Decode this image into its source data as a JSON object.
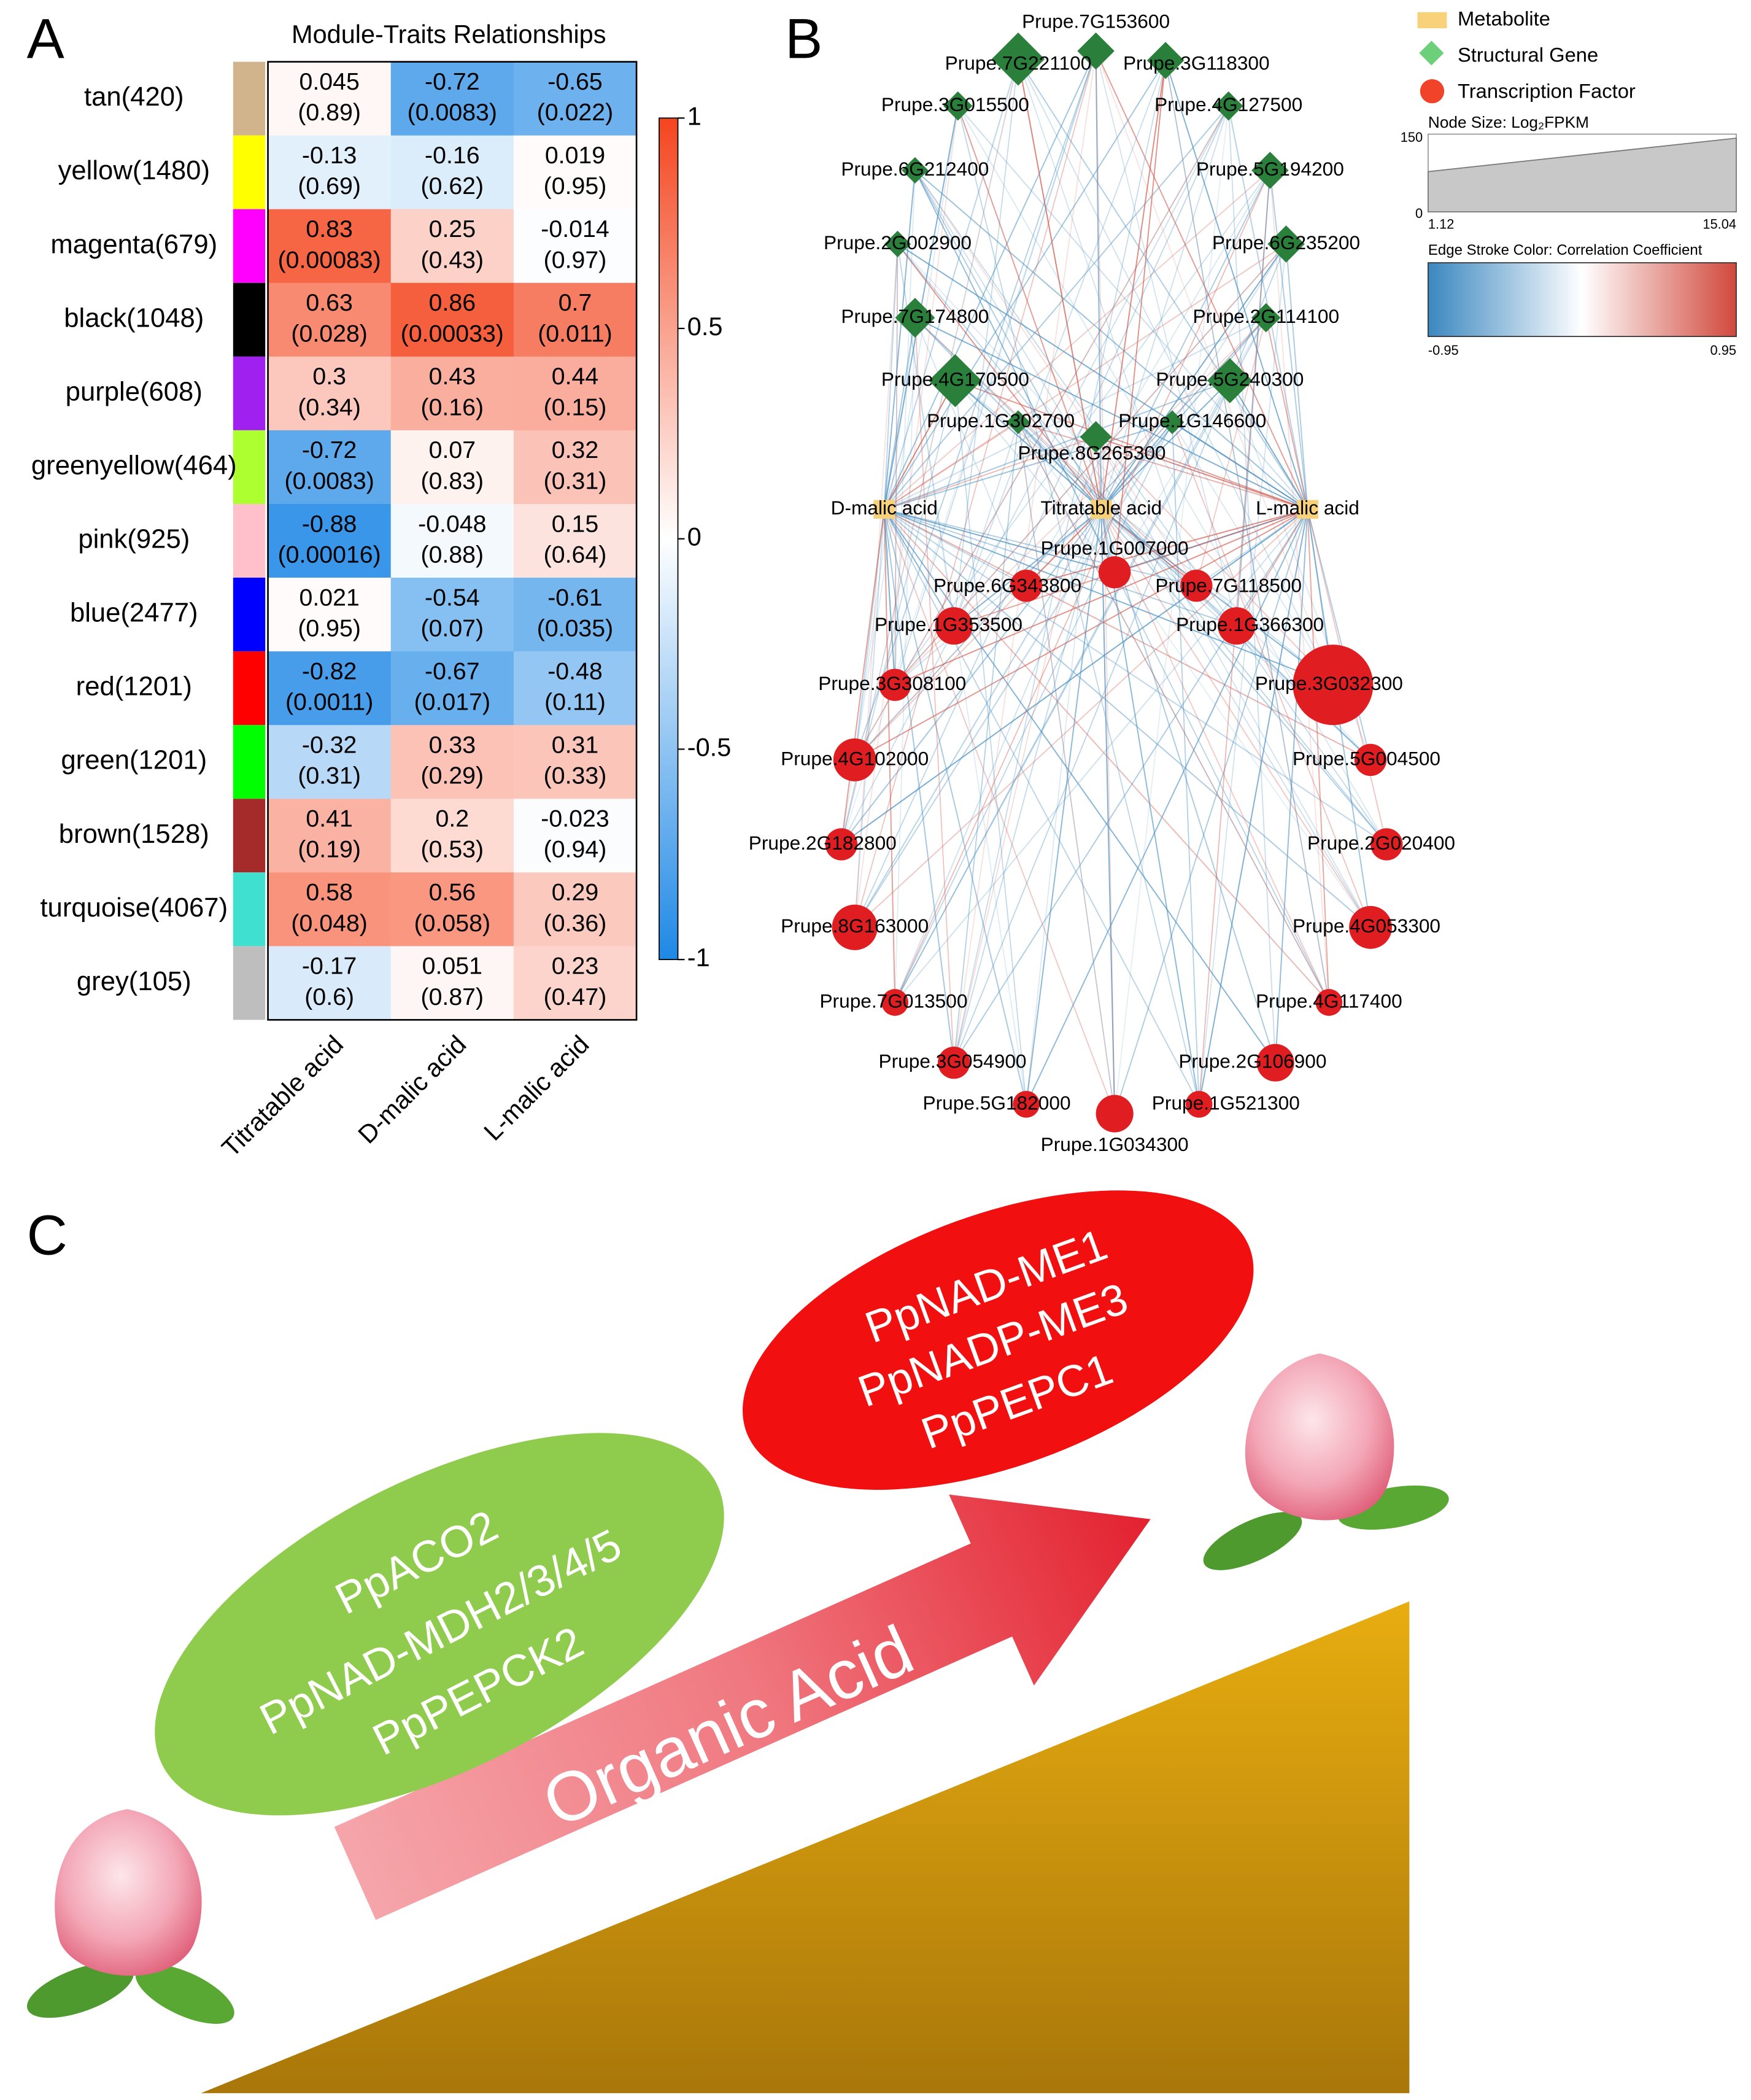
{
  "chart_data": {
    "type": "heatmap",
    "title": "Module-Traits Relationships",
    "rows": [
      "tan(420)",
      "yellow(1480)",
      "magenta(679)",
      "black(1048)",
      "purple(608)",
      "greenyellow(464)",
      "pink(925)",
      "blue(2477)",
      "red(1201)",
      "green(1201)",
      "brown(1528)",
      "turquoise(4067)",
      "grey(105)"
    ],
    "row_colors": [
      "#d2b48c",
      "#ffff00",
      "#ff00ff",
      "#000000",
      "#a020f0",
      "#adff2f",
      "#ffc0cb",
      "#0000ff",
      "#ff0000",
      "#00ff00",
      "#a52a2a",
      "#40e0d0",
      "#bebebe"
    ],
    "columns": [
      "Titratable acid",
      "D-malic acid",
      "L-malic acid"
    ],
    "values": [
      [
        0.045,
        -0.72,
        -0.65
      ],
      [
        -0.13,
        -0.16,
        0.019
      ],
      [
        0.83,
        0.25,
        -0.014
      ],
      [
        0.63,
        0.86,
        0.7
      ],
      [
        0.3,
        0.43,
        0.44
      ],
      [
        -0.72,
        0.07,
        0.32
      ],
      [
        -0.88,
        -0.048,
        0.15
      ],
      [
        0.021,
        -0.54,
        -0.61
      ],
      [
        -0.82,
        -0.67,
        -0.48
      ],
      [
        -0.32,
        0.33,
        0.31
      ],
      [
        0.41,
        0.2,
        -0.023
      ],
      [
        0.58,
        0.56,
        0.29
      ],
      [
        -0.17,
        0.051,
        0.23
      ]
    ],
    "pvalues": [
      [
        0.89,
        0.0083,
        0.022
      ],
      [
        0.69,
        0.62,
        0.95
      ],
      [
        0.00083,
        0.43,
        0.97
      ],
      [
        0.028,
        0.00033,
        0.011
      ],
      [
        0.34,
        0.16,
        0.15
      ],
      [
        0.0083,
        0.83,
        0.31
      ],
      [
        0.00016,
        0.88,
        0.64
      ],
      [
        0.95,
        0.07,
        0.035
      ],
      [
        0.0011,
        0.017,
        0.11
      ],
      [
        0.31,
        0.29,
        0.33
      ],
      [
        0.19,
        0.53,
        0.94
      ],
      [
        0.048,
        0.058,
        0.36
      ],
      [
        0.6,
        0.87,
        0.47
      ]
    ],
    "pvalue_labels": [
      [
        "(0.89)",
        "(0.0083)",
        "(0.022)"
      ],
      [
        "(0.69)",
        "(0.62)",
        "(0.95)"
      ],
      [
        "(0.00083)",
        "(0.43)",
        "(0.97)"
      ],
      [
        "(0.028)",
        "(0.00033)",
        "(0.011)"
      ],
      [
        "(0.34)",
        "(0.16)",
        "(0.15)"
      ],
      [
        "(0.0083)",
        "(0.83)",
        "(0.31)"
      ],
      [
        "(0.00016)",
        "(0.88)",
        "(0.64)"
      ],
      [
        "(0.95)",
        "(0.07)",
        "(0.035)"
      ],
      [
        "(0.0011)",
        "(0.017)",
        "(0.11)"
      ],
      [
        "(0.31)",
        "(0.29)",
        "(0.33)"
      ],
      [
        "(0.19)",
        "(0.53)",
        "(0.94)"
      ],
      [
        "(0.048)",
        "(0.058)",
        "(0.36)"
      ],
      [
        "(0.6)",
        "(0.87)",
        "(0.47)"
      ]
    ],
    "colorbar_lim": [
      -1,
      1
    ],
    "colorbar_ticks": [
      -1,
      -0.5,
      0,
      0.5,
      1
    ],
    "colors": {
      "negative": "#1e88e5",
      "zero": "#ffffff",
      "positive": "#f4451e"
    }
  },
  "panels": [
    "A",
    "B",
    "C"
  ],
  "network": {
    "legend": [
      "Metabolite",
      "Structural Gene",
      "Transcription Factor"
    ],
    "size_legend": {
      "title": "Node Size: Log₂FPKM",
      "ymax": 150,
      "ymin": 0,
      "xmin": 1.12,
      "xmax": 15.04
    },
    "edge_legend": {
      "title": "Edge Stroke Color: Correlation Coefficient",
      "min": -0.95,
      "max": 0.95
    },
    "metabolites": [
      "D-malic acid",
      "Titratable acid",
      "L-malic acid"
    ],
    "structural_genes": [
      "Prupe.7G153600",
      "Prupe.7G221100",
      "Prupe.3G118300",
      "Prupe.3G015500",
      "Prupe.4G127500",
      "Prupe.6G212400",
      "Prupe.5G194200",
      "Prupe.2G002900",
      "Prupe.6G235200",
      "Prupe.7G174800",
      "Prupe.2G114100",
      "Prupe.4G170500",
      "Prupe.5G240300",
      "Prupe.1G302700",
      "Prupe.1G146600",
      "Prupe.8G265300"
    ],
    "transcription_factors": [
      "Prupe.1G007000",
      "Prupe.6G343800",
      "Prupe.7G118500",
      "Prupe.1G353500",
      "Prupe.1G366300",
      "Prupe.3G308100",
      "Prupe.3G032300",
      "Prupe.4G102000",
      "Prupe.5G004500",
      "Prupe.2G182800",
      "Prupe.2G020400",
      "Prupe.8G163000",
      "Prupe.4G053300",
      "Prupe.7G013500",
      "Prupe.4G117400",
      "Prupe.3G054900",
      "Prupe.2G106900",
      "Prupe.5G182000",
      "Prupe.1G521300",
      "Prupe.1G034300"
    ]
  },
  "pathway": {
    "low_genes": [
      "PpACO2",
      "PpNAD-MDH2/3/4/5",
      "PpPEPCK2"
    ],
    "high_genes": [
      "PpNAD-ME1",
      "PpNADP-ME3",
      "PpPEPC1"
    ],
    "arrow": "Organic Acid"
  }
}
